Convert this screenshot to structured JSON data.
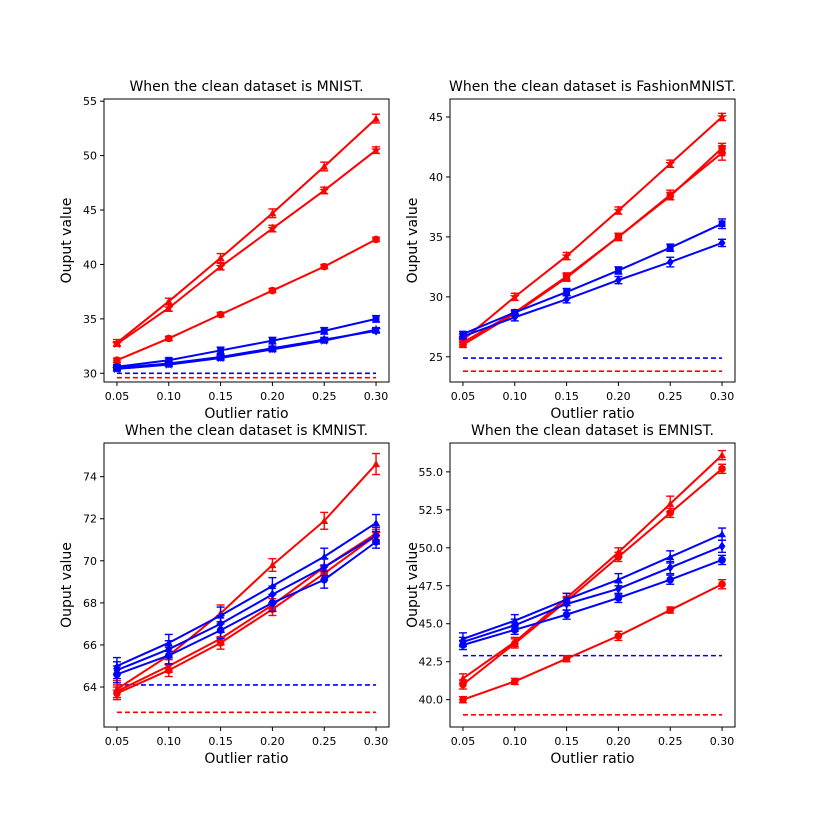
{
  "colors": {
    "red": "#ff0000",
    "blue": "#0000ff",
    "axis": "#000000"
  },
  "chart_data": [
    {
      "type": "line",
      "title": "When the clean dataset is MNIST.",
      "xlabel": "Outlier ratio",
      "ylabel": "Ouput value",
      "x": [
        0.05,
        0.1,
        0.15,
        0.2,
        0.25,
        0.3
      ],
      "xticks": [
        "0.05",
        "0.10",
        "0.15",
        "0.20",
        "0.25",
        "0.30"
      ],
      "ylim": [
        29.2,
        55.2
      ],
      "yticks": [
        30,
        35,
        40,
        45,
        50,
        55
      ],
      "yticklabels": [
        "30",
        "35",
        "40",
        "45",
        "50",
        "55"
      ],
      "series": [
        {
          "name": "red-triangle",
          "color": "red",
          "marker": "triangle",
          "values": [
            32.8,
            36.6,
            40.6,
            44.7,
            49.0,
            53.4
          ],
          "errors": [
            0.3,
            0.3,
            0.4,
            0.4,
            0.4,
            0.4
          ]
        },
        {
          "name": "red-star",
          "color": "red",
          "marker": "star",
          "values": [
            32.7,
            36.0,
            39.8,
            43.3,
            46.8,
            50.5
          ],
          "errors": [
            0.2,
            0.3,
            0.3,
            0.3,
            0.3,
            0.3
          ]
        },
        {
          "name": "red-circle",
          "color": "red",
          "marker": "circle",
          "values": [
            31.2,
            33.2,
            35.4,
            37.6,
            39.8,
            42.3
          ],
          "errors": [
            0.2,
            0.2,
            0.2,
            0.2,
            0.2,
            0.2
          ]
        },
        {
          "name": "blue-square",
          "color": "blue",
          "marker": "square",
          "values": [
            30.6,
            31.2,
            32.1,
            33.0,
            33.9,
            35.0
          ],
          "errors": [
            0.2,
            0.2,
            0.3,
            0.3,
            0.3,
            0.3
          ]
        },
        {
          "name": "blue-diamond",
          "color": "blue",
          "marker": "diamond",
          "values": [
            30.5,
            30.9,
            31.5,
            32.3,
            33.1,
            33.9
          ],
          "errors": [
            0.2,
            0.2,
            0.2,
            0.2,
            0.2,
            0.2
          ]
        },
        {
          "name": "blue-star",
          "color": "blue",
          "marker": "star",
          "values": [
            30.4,
            30.8,
            31.4,
            32.2,
            33.0,
            34.0
          ],
          "errors": [
            0.2,
            0.2,
            0.2,
            0.2,
            0.2,
            0.2
          ]
        }
      ],
      "baselines": [
        {
          "name": "blue-dashed",
          "color": "blue",
          "value": 30.0
        },
        {
          "name": "red-dashed",
          "color": "red",
          "value": 29.6
        }
      ]
    },
    {
      "type": "line",
      "title": "When the clean dataset is FashionMNIST.",
      "xlabel": "Outlier ratio",
      "ylabel": "Ouput value",
      "x": [
        0.05,
        0.1,
        0.15,
        0.2,
        0.25,
        0.3
      ],
      "xticks": [
        "0.05",
        "0.10",
        "0.15",
        "0.20",
        "0.25",
        "0.30"
      ],
      "ylim": [
        22.9,
        46.5
      ],
      "yticks": [
        25,
        30,
        35,
        40,
        45
      ],
      "yticklabels": [
        "25",
        "30",
        "35",
        "40",
        "45"
      ],
      "series": [
        {
          "name": "red-star",
          "color": "red",
          "marker": "star",
          "values": [
            26.4,
            30.0,
            33.4,
            37.2,
            41.1,
            45.0
          ],
          "errors": [
            0.2,
            0.3,
            0.3,
            0.3,
            0.3,
            0.3
          ]
        },
        {
          "name": "red-circle",
          "color": "red",
          "marker": "circle",
          "values": [
            26.2,
            28.7,
            31.7,
            35.0,
            38.4,
            42.4
          ],
          "errors": [
            0.2,
            0.2,
            0.3,
            0.3,
            0.3,
            0.4
          ]
        },
        {
          "name": "red-square",
          "color": "red",
          "marker": "square",
          "values": [
            26.0,
            28.6,
            31.6,
            35.0,
            38.5,
            42.0
          ],
          "errors": [
            0.2,
            0.2,
            0.3,
            0.3,
            0.4,
            0.6
          ]
        },
        {
          "name": "blue-square",
          "color": "blue",
          "marker": "square",
          "values": [
            26.9,
            28.7,
            30.4,
            32.2,
            34.1,
            36.1
          ],
          "errors": [
            0.2,
            0.2,
            0.3,
            0.3,
            0.3,
            0.4
          ]
        },
        {
          "name": "blue-diamond",
          "color": "blue",
          "marker": "diamond",
          "values": [
            26.7,
            28.3,
            29.8,
            31.4,
            32.9,
            34.5
          ],
          "errors": [
            0.2,
            0.3,
            0.3,
            0.3,
            0.4,
            0.3
          ]
        }
      ],
      "baselines": [
        {
          "name": "blue-dashed",
          "color": "blue",
          "value": 24.9
        },
        {
          "name": "red-dashed",
          "color": "red",
          "value": 23.8
        }
      ]
    },
    {
      "type": "line",
      "title": "When the clean dataset is KMNIST.",
      "xlabel": "Outlier ratio",
      "ylabel": "Ouput value",
      "x": [
        0.05,
        0.1,
        0.15,
        0.2,
        0.25,
        0.3
      ],
      "xticks": [
        "0.05",
        "0.10",
        "0.15",
        "0.20",
        "0.25",
        "0.30"
      ],
      "ylim": [
        62.1,
        75.6
      ],
      "yticks": [
        64,
        66,
        68,
        70,
        72,
        74
      ],
      "yticklabels": [
        "64",
        "66",
        "68",
        "70",
        "72",
        "74"
      ],
      "series": [
        {
          "name": "red-triangle",
          "color": "red",
          "marker": "triangle",
          "values": [
            63.9,
            65.5,
            67.5,
            69.8,
            71.9,
            74.6
          ],
          "errors": [
            0.4,
            0.4,
            0.4,
            0.3,
            0.4,
            0.5
          ]
        },
        {
          "name": "red-star",
          "color": "red",
          "marker": "star",
          "values": [
            63.8,
            65.0,
            66.3,
            67.9,
            69.7,
            71.3
          ],
          "errors": [
            0.3,
            0.3,
            0.3,
            0.3,
            0.4,
            0.3
          ]
        },
        {
          "name": "red-circle",
          "color": "red",
          "marker": "circle",
          "values": [
            63.7,
            64.8,
            66.1,
            67.7,
            69.4,
            71.2
          ],
          "errors": [
            0.3,
            0.3,
            0.3,
            0.3,
            0.3,
            0.3
          ]
        },
        {
          "name": "blue-triangle",
          "color": "blue",
          "marker": "triangle",
          "values": [
            65.0,
            66.1,
            67.4,
            68.8,
            70.2,
            71.8
          ],
          "errors": [
            0.4,
            0.4,
            0.4,
            0.4,
            0.4,
            0.4
          ]
        },
        {
          "name": "blue-diamond",
          "color": "blue",
          "marker": "diamond",
          "values": [
            64.8,
            65.8,
            67.0,
            68.4,
            69.7,
            71.2
          ],
          "errors": [
            0.4,
            0.4,
            0.4,
            0.4,
            0.4,
            0.4
          ]
        },
        {
          "name": "blue-circle",
          "color": "blue",
          "marker": "circle",
          "values": [
            64.6,
            65.5,
            66.7,
            68.0,
            69.1,
            70.9
          ],
          "errors": [
            0.4,
            0.4,
            0.4,
            0.4,
            0.4,
            0.3
          ]
        }
      ],
      "baselines": [
        {
          "name": "blue-dashed",
          "color": "blue",
          "value": 64.1
        },
        {
          "name": "red-dashed",
          "color": "red",
          "value": 62.8
        }
      ]
    },
    {
      "type": "line",
      "title": "When the clean dataset is EMNIST.",
      "xlabel": "Outlier ratio",
      "ylabel": "Ouput value",
      "x": [
        0.05,
        0.1,
        0.15,
        0.2,
        0.25,
        0.3
      ],
      "xticks": [
        "0.05",
        "0.10",
        "0.15",
        "0.20",
        "0.25",
        "0.30"
      ],
      "ylim": [
        38.2,
        56.9
      ],
      "yticks": [
        40.0,
        42.5,
        45.0,
        47.5,
        50.0,
        52.5,
        55.0
      ],
      "yticklabels": [
        "40.0",
        "42.5",
        "45.0",
        "47.5",
        "50.0",
        "52.5",
        "55.0"
      ],
      "series": [
        {
          "name": "red-triangle",
          "color": "red",
          "marker": "triangle",
          "values": [
            41.4,
            43.8,
            46.7,
            49.7,
            52.9,
            56.1
          ],
          "errors": [
            0.3,
            0.3,
            0.3,
            0.3,
            0.5,
            0.3
          ]
        },
        {
          "name": "red-circle-a",
          "color": "red",
          "marker": "circle",
          "values": [
            41.0,
            43.7,
            46.5,
            49.4,
            52.3,
            55.2
          ],
          "errors": [
            0.3,
            0.3,
            0.3,
            0.3,
            0.3,
            0.3
          ]
        },
        {
          "name": "red-circle-b",
          "color": "red",
          "marker": "circle",
          "values": [
            40.0,
            41.2,
            42.7,
            44.2,
            45.9,
            47.6
          ],
          "errors": [
            0.2,
            0.2,
            0.2,
            0.3,
            0.2,
            0.3
          ]
        },
        {
          "name": "blue-triangle",
          "color": "blue",
          "marker": "triangle",
          "values": [
            44.0,
            45.2,
            46.6,
            47.9,
            49.4,
            50.9
          ],
          "errors": [
            0.4,
            0.4,
            0.4,
            0.4,
            0.4,
            0.4
          ]
        },
        {
          "name": "blue-diamond",
          "color": "blue",
          "marker": "diamond",
          "values": [
            43.8,
            44.9,
            46.3,
            47.3,
            48.7,
            50.1
          ],
          "errors": [
            0.3,
            0.4,
            0.4,
            0.4,
            0.4,
            0.4
          ]
        },
        {
          "name": "blue-circle",
          "color": "blue",
          "marker": "circle",
          "values": [
            43.6,
            44.6,
            45.6,
            46.7,
            47.9,
            49.2
          ],
          "errors": [
            0.3,
            0.3,
            0.3,
            0.3,
            0.3,
            0.3
          ]
        }
      ],
      "baselines": [
        {
          "name": "blue-dashed",
          "color": "blue",
          "value": 42.9
        },
        {
          "name": "red-dashed",
          "color": "red",
          "value": 39.0
        }
      ]
    }
  ]
}
